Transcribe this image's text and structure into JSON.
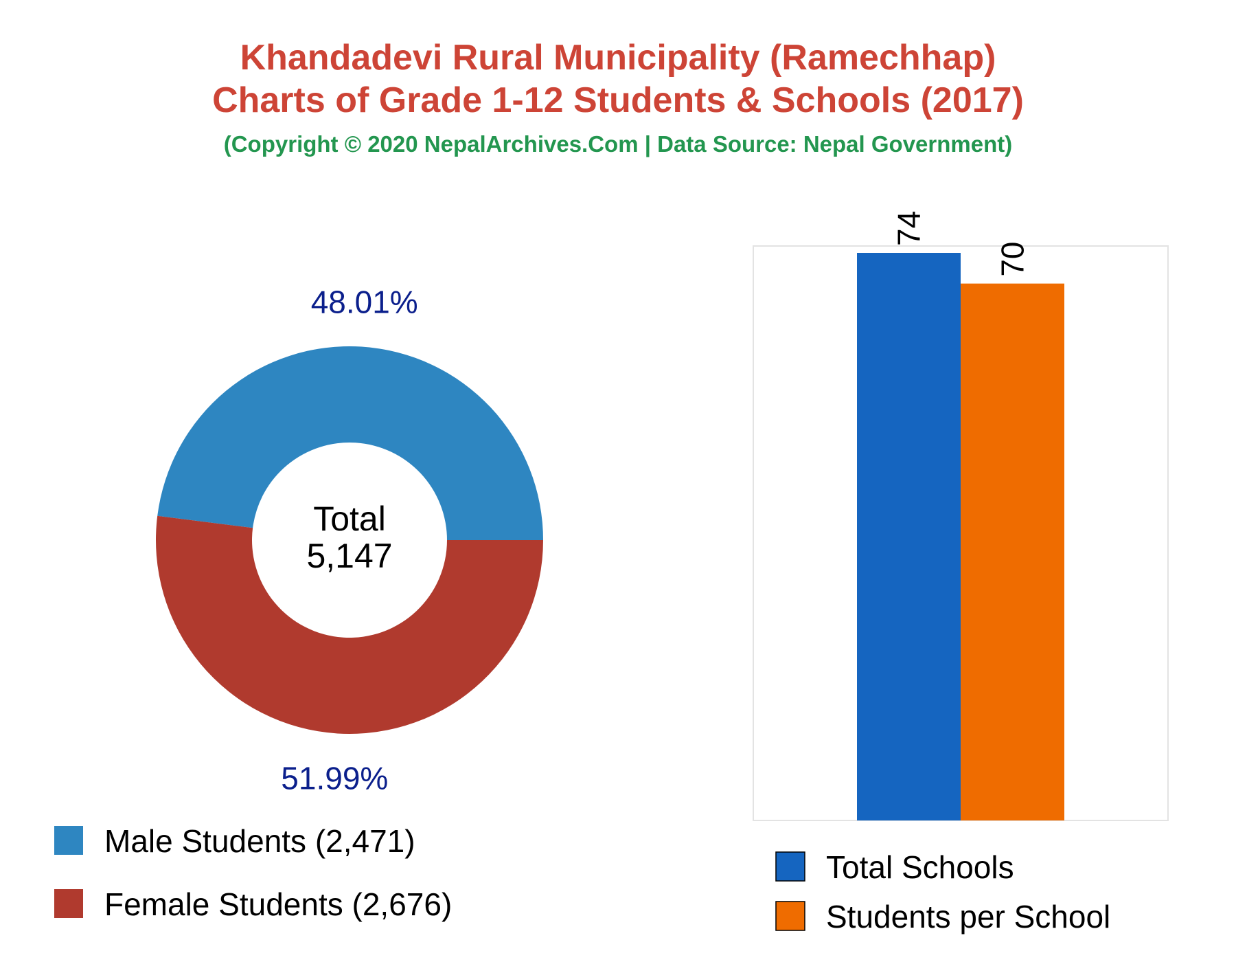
{
  "header": {
    "title_line1": "Khandadevi Rural Municipality (Ramechhap)",
    "title_line2": "Charts of Grade 1-12 Students & Schools (2017)",
    "subtitle": "(Copyright © 2020 NepalArchives.Com | Data Source: Nepal Government)"
  },
  "chart_data": [
    {
      "type": "pie",
      "donut": true,
      "center_label": "Total",
      "center_value": "5,147",
      "slices": [
        {
          "label": "Male Students (2,471)",
          "value": 2471,
          "percent_label": "48.01%",
          "color": "#2e86c1"
        },
        {
          "label": "Female Students (2,676)",
          "value": 2676,
          "percent_label": "51.99%",
          "color": "#b03a2e"
        }
      ],
      "legend_position": "bottom-left"
    },
    {
      "type": "bar",
      "categories": [
        "Total Schools",
        "Students per School"
      ],
      "values": [
        74,
        70
      ],
      "data_labels": [
        "74",
        "70"
      ],
      "colors": [
        "#1565c0",
        "#ef6c00"
      ],
      "ylim": [
        0,
        74
      ],
      "grid": false,
      "legend_position": "bottom"
    }
  ]
}
